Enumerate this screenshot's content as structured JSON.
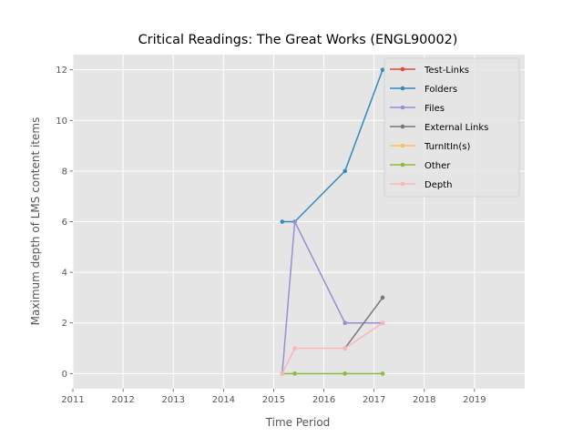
{
  "chart_data": {
    "type": "line",
    "title": "Critical Readings: The Great Works (ENGL90002)",
    "xlabel": "Time Period",
    "ylabel": "Maximum depth of LMS content items",
    "xlim": [
      2011,
      2020
    ],
    "ylim": [
      -0.6,
      12.6
    ],
    "xticks": [
      2011,
      2012,
      2013,
      2014,
      2015,
      2016,
      2017,
      2018,
      2019
    ],
    "yticks": [
      0,
      2,
      4,
      6,
      8,
      10,
      12
    ],
    "grid": true,
    "legend_position": "top-right",
    "series": [
      {
        "name": "Test-Links",
        "color": "#E24A33",
        "x": [],
        "y": []
      },
      {
        "name": "Folders",
        "color": "#348ABD",
        "x": [
          2015.17,
          2015.42,
          2016.42,
          2017.17
        ],
        "y": [
          6,
          6,
          8,
          12
        ]
      },
      {
        "name": "Files",
        "color": "#988ED5",
        "x": [
          2015.17,
          2015.42,
          2016.42,
          2017.17
        ],
        "y": [
          0,
          6,
          2,
          2
        ]
      },
      {
        "name": "External Links",
        "color": "#777777",
        "x": [
          2016.42,
          2017.17
        ],
        "y": [
          1,
          3
        ]
      },
      {
        "name": "TurnItIn(s)",
        "color": "#FBC15E",
        "x": [],
        "y": []
      },
      {
        "name": "Other",
        "color": "#8EBA42",
        "x": [
          2015.17,
          2015.42,
          2016.42,
          2017.17
        ],
        "y": [
          0,
          0,
          0,
          0
        ]
      },
      {
        "name": "Depth",
        "color": "#FFB5B8",
        "x": [
          2015.17,
          2015.42,
          2016.42,
          2017.17
        ],
        "y": [
          0,
          1,
          1,
          2
        ]
      }
    ]
  }
}
